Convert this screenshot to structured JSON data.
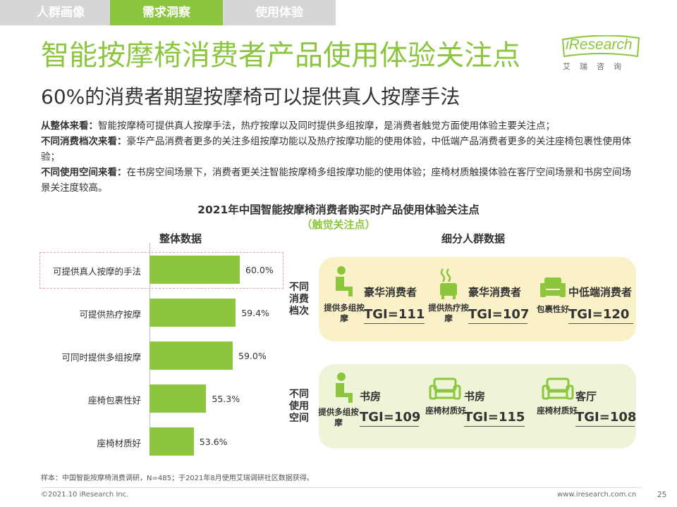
{
  "tabs": [
    "人群画像",
    "需求洞察",
    "使用体验"
  ],
  "logo": {
    "text": "iResearch",
    "sub": "艾瑞咨询"
  },
  "title": "智能按摩椅消费者产品使用体验关注点",
  "subtitle": "60%的消费者期望按摩椅可以提供真人按摩手法",
  "paragraphs": [
    {
      "head": "从整体来看：",
      "body": "智能按摩椅可提供真人按摩手法，热疗按摩以及同时提供多组按摩，是消费者触觉方面使用体验主要关注点；"
    },
    {
      "head": "不同消费档次来看：",
      "body": "豪华产品消费者更多的关注多组按摩功能以及热疗按摩功能的使用体验，中低端产品消费者更多的关注座椅包裹性使用体验；"
    },
    {
      "head": "不同使用空间来看：",
      "body": "在书房空间场景下，消费者更关注智能按摩椅多组按摩功能的使用体验；座椅材质触摸体验在客厅空间场景和书房空间场景关注度较高。"
    }
  ],
  "sections": {
    "overall": "整体数据",
    "segment": "细分人群数据"
  },
  "chart_data": {
    "type": "bar",
    "orientation": "horizontal",
    "title": "2021年中国智能按摩椅消费者购买时产品使用体验关注点",
    "subtitle": "（触觉关注点）",
    "categories": [
      "可提供真人按摩的手法",
      "可提供热疗按摩",
      "可同时提供多组按摩",
      "座椅包裹性好",
      "座椅材质好"
    ],
    "values": [
      60.0,
      59.4,
      59.0,
      55.3,
      53.6
    ],
    "value_labels": [
      "60.0%",
      "59.4%",
      "59.0%",
      "55.3%",
      "53.6%"
    ],
    "unit": "%"
  },
  "segments": {
    "consumption": {
      "label": "不同消费档次",
      "items": [
        {
          "icon": "person-sitting-icon",
          "feature": "提供多组按摩",
          "segment": "豪华消费者",
          "tgi": "TGI=111"
        },
        {
          "icon": "heat-chair-icon",
          "feature": "提供热疗按摩",
          "segment": "豪华消费者",
          "tgi": "TGI=107"
        },
        {
          "icon": "armchair-icon",
          "feature": "包裹性好",
          "segment": "中低端消费者",
          "tgi": "TGI=120"
        }
      ]
    },
    "space": {
      "label": "不同使用空间",
      "items": [
        {
          "icon": "person-sitting-icon",
          "feature": "提供多组按摩",
          "segment": "书房",
          "tgi": "TGI=109"
        },
        {
          "icon": "sofa-icon",
          "feature": "座椅材质好",
          "segment": "书房",
          "tgi": "TGI=115"
        },
        {
          "icon": "sofa-icon",
          "feature": "座椅材质好",
          "segment": "客厅",
          "tgi": "TGI=108"
        }
      ]
    }
  },
  "footnote": "样本：中国智能按摩椅消费调研，N=485；于2021年8月使用艾瑞调研社区数据获得。",
  "footer": {
    "copyright": "©2021.10 iResearch Inc.",
    "url": "www.iresearch.com.cn",
    "page": "25"
  },
  "colors": {
    "accent": "#8cc63f",
    "tab_inactive": "#d6d6d6",
    "panel_yellow": "#fbf1c8",
    "panel_green": "#eef5d6"
  }
}
